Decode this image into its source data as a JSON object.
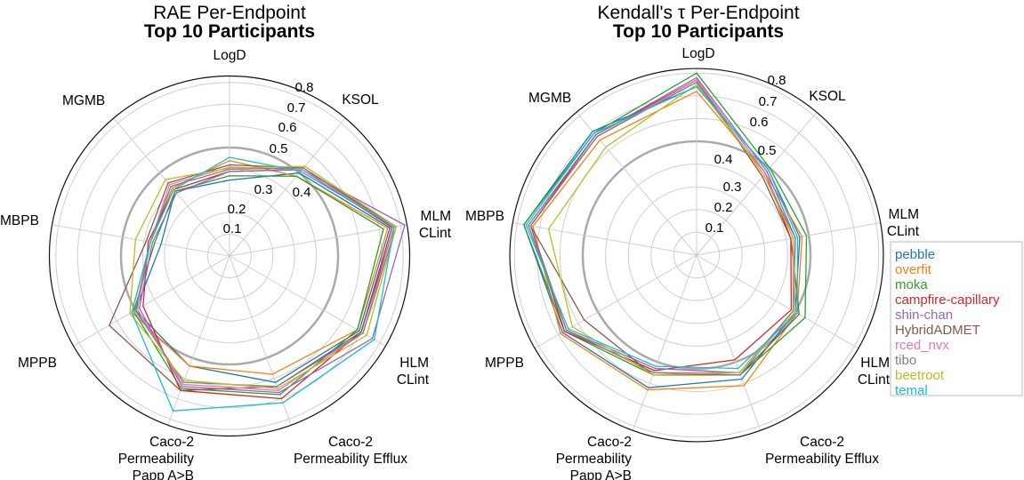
{
  "chart_data": [
    {
      "type": "radar",
      "title": "RAE Per-Endpoint",
      "subtitle": "Top 10 Participants",
      "axes": [
        "LogD",
        "KSOL",
        "MLM\nCLint",
        "HLM\nCLint",
        "Caco-2\nPermeability Efflux",
        "Caco-2\nPermeability\nPapp A>B",
        "MPPB",
        "MBPB",
        "MGMB"
      ],
      "rticks": [
        "0.1",
        "0.2",
        "0.3",
        "0.4",
        "0.5",
        "0.6",
        "0.7",
        "0.8"
      ],
      "rlim": [
        0,
        0.83
      ],
      "highlight_ring": 0.5,
      "grid": true,
      "series": [
        {
          "name": "pebble",
          "values": [
            0.35,
            0.5,
            0.75,
            0.69,
            0.62,
            0.54,
            0.5,
            0.32,
            0.39
          ]
        },
        {
          "name": "overfit",
          "values": [
            0.44,
            0.48,
            0.74,
            0.68,
            0.58,
            0.54,
            0.52,
            0.37,
            0.41
          ]
        },
        {
          "name": "moka",
          "values": [
            0.37,
            0.48,
            0.72,
            0.68,
            0.68,
            0.65,
            0.51,
            0.35,
            0.39
          ]
        },
        {
          "name": "campfire-capillary",
          "values": [
            0.39,
            0.52,
            0.76,
            0.7,
            0.7,
            0.66,
            0.46,
            0.38,
            0.4
          ]
        },
        {
          "name": "shin-chan",
          "values": [
            0.39,
            0.52,
            0.82,
            0.76,
            0.67,
            0.64,
            0.48,
            0.36,
            0.38
          ]
        },
        {
          "name": "HybridADMET",
          "values": [
            0.42,
            0.53,
            0.77,
            0.7,
            0.64,
            0.66,
            0.64,
            0.39,
            0.44
          ]
        },
        {
          "name": "rced_nvx",
          "values": [
            0.41,
            0.52,
            0.77,
            0.71,
            0.66,
            0.63,
            0.49,
            0.37,
            0.43
          ]
        },
        {
          "name": "tibo",
          "values": [
            0.4,
            0.53,
            0.78,
            0.71,
            0.64,
            0.62,
            0.5,
            0.37,
            0.42
          ]
        },
        {
          "name": "beetroot",
          "values": [
            0.405,
            0.54,
            0.78,
            0.73,
            0.65,
            0.61,
            0.53,
            0.44,
            0.46
          ]
        },
        {
          "name": "temal",
          "values": [
            0.455,
            0.51,
            0.77,
            0.77,
            0.72,
            0.76,
            0.52,
            0.37,
            0.4
          ]
        }
      ]
    },
    {
      "type": "radar",
      "title": "Kendall's τ Per-Endpoint",
      "subtitle": "Top 10 Participants",
      "axes": [
        "LogD",
        "KSOL",
        "MLM\nCLint",
        "HLM\nCLint",
        "Caco-2\nPermeability Efflux",
        "Caco-2\nPermeability\nPapp A>B",
        "MPPB",
        "MBPB",
        "MGMB"
      ],
      "rticks": [
        "0.1",
        "0.2",
        "0.3",
        "0.4",
        "0.5",
        "0.6",
        "0.7",
        "0.8"
      ],
      "rlim": [
        0,
        0.82
      ],
      "highlight_ring": 0.5,
      "grid": true,
      "legend_position": "right",
      "series": [
        {
          "name": "pebble",
          "values": [
            0.74,
            0.49,
            0.46,
            0.5,
            0.58,
            0.62,
            0.68,
            0.77,
            0.71
          ]
        },
        {
          "name": "overfit",
          "values": [
            0.72,
            0.47,
            0.47,
            0.51,
            0.61,
            0.63,
            0.69,
            0.73,
            0.66
          ]
        },
        {
          "name": "moka",
          "values": [
            0.8,
            0.5,
            0.49,
            0.55,
            0.56,
            0.56,
            0.67,
            0.77,
            0.7
          ]
        },
        {
          "name": "campfire-capillary",
          "values": [
            0.77,
            0.47,
            0.42,
            0.48,
            0.49,
            0.54,
            0.67,
            0.74,
            0.69
          ]
        },
        {
          "name": "shin-chan",
          "values": [
            0.78,
            0.48,
            0.44,
            0.49,
            0.55,
            0.53,
            0.66,
            0.75,
            0.69
          ]
        },
        {
          "name": "HybridADMET",
          "values": [
            0.77,
            0.45,
            0.42,
            0.52,
            0.56,
            0.56,
            0.57,
            0.74,
            0.68
          ]
        },
        {
          "name": "rced_nvx",
          "values": [
            0.77,
            0.47,
            0.43,
            0.49,
            0.55,
            0.55,
            0.66,
            0.74,
            0.68
          ]
        },
        {
          "name": "tibo",
          "values": [
            0.76,
            0.46,
            0.44,
            0.49,
            0.56,
            0.55,
            0.66,
            0.74,
            0.68
          ]
        },
        {
          "name": "beetroot",
          "values": [
            0.75,
            0.46,
            0.43,
            0.5,
            0.55,
            0.56,
            0.63,
            0.66,
            0.62
          ]
        },
        {
          "name": "temal",
          "values": [
            0.74,
            0.49,
            0.45,
            0.51,
            0.53,
            0.52,
            0.65,
            0.76,
            0.7
          ]
        }
      ]
    }
  ],
  "colors": {
    "pebble": "#1f77b4",
    "overfit": "#ff7f0e",
    "moka": "#2ca02c",
    "campfire-capillary": "#d62728",
    "shin-chan": "#9467bd",
    "HybridADMET": "#8c564b",
    "rced_nvx": "#e377c2",
    "tibo": "#7f7f7f",
    "beetroot": "#bcbd22",
    "temal": "#17becf"
  }
}
